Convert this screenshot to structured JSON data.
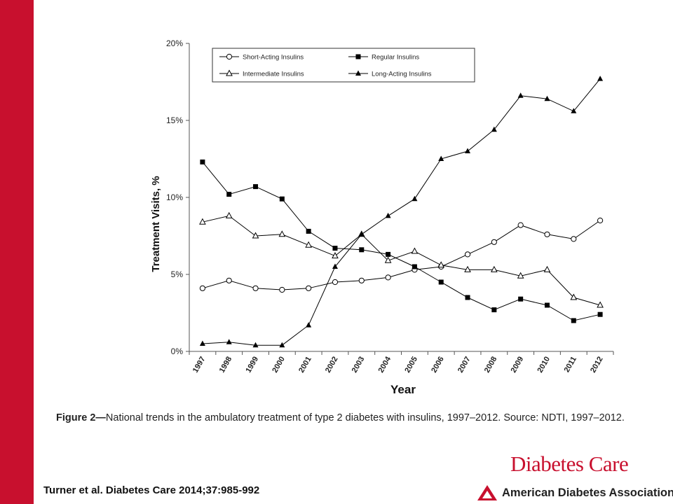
{
  "caption": {
    "lead": "Figure 2—",
    "text": "National trends in the ambulatory treatment of type 2 diabetes with insulins, 1997–2012. Source: NDTI, 1997–2012."
  },
  "citation": "Turner et al. Diabetes Care 2014;37:985-992",
  "journal_name": "Diabetes Care",
  "publisher_name": "American Diabetes Association.",
  "colors": {
    "accent": "#c8102e",
    "line": "#000000"
  },
  "chart_data": {
    "type": "line",
    "title": "",
    "xlabel": "Year",
    "ylabel": "Treatment Visits, %",
    "x": [
      "1997",
      "1998",
      "1999",
      "2000",
      "2001",
      "2002",
      "2003",
      "2004",
      "2005",
      "2006",
      "2007",
      "2008",
      "2009",
      "2010",
      "2011",
      "2012"
    ],
    "ylim": [
      0,
      20
    ],
    "yticks": [
      "0%",
      "5%",
      "10%",
      "15%",
      "20%"
    ],
    "grid": false,
    "legend_position": "top",
    "series": [
      {
        "name": "Short-Acting Insulins",
        "marker": "open-circle",
        "values": [
          4.1,
          4.6,
          4.1,
          4.0,
          4.1,
          4.5,
          4.6,
          4.8,
          5.3,
          5.5,
          6.3,
          7.1,
          8.2,
          7.6,
          7.3,
          8.5
        ]
      },
      {
        "name": "Regular Insulins",
        "marker": "filled-square",
        "values": [
          12.3,
          10.2,
          10.7,
          9.9,
          7.8,
          6.7,
          6.6,
          6.3,
          5.5,
          4.5,
          3.5,
          2.7,
          3.4,
          3.0,
          2.0,
          2.4
        ]
      },
      {
        "name": "Intermediate Insulins",
        "marker": "open-triangle",
        "values": [
          8.4,
          8.8,
          7.5,
          7.6,
          6.9,
          6.2,
          7.6,
          5.9,
          6.5,
          5.6,
          5.3,
          5.3,
          4.9,
          5.3,
          3.5,
          3.0
        ]
      },
      {
        "name": "Long-Acting Insulins",
        "marker": "filled-triangle",
        "values": [
          0.5,
          0.6,
          0.4,
          0.4,
          1.7,
          5.5,
          7.6,
          8.8,
          9.9,
          12.5,
          13.0,
          14.4,
          16.6,
          16.4,
          15.6,
          17.7
        ]
      }
    ]
  }
}
